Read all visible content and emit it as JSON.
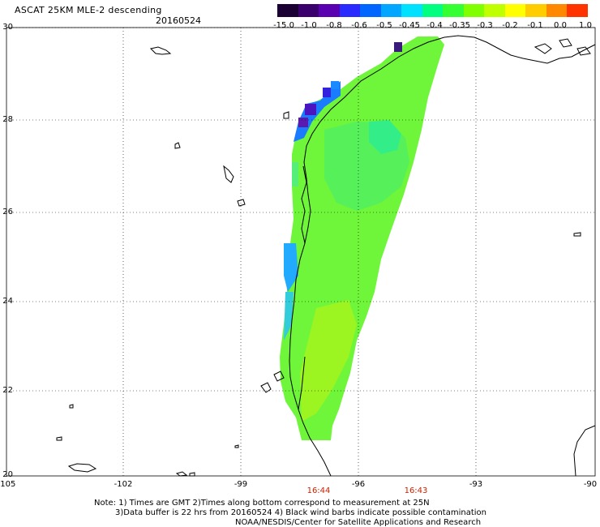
{
  "header": {
    "title": "ASCAT 25KM MLE-2 descending",
    "date": "20160524"
  },
  "colorbar": {
    "colors": [
      "#1a0033",
      "#3a006b",
      "#5a00b0",
      "#2a2aff",
      "#0066ff",
      "#00a6ff",
      "#00e0ff",
      "#00ff80",
      "#33ff33",
      "#80ff00",
      "#bfff00",
      "#ffff00",
      "#ffcc00",
      "#ff8800",
      "#ff3300"
    ],
    "labels": [
      "-15.0",
      "-1.0",
      "-0.8",
      "-0.6",
      "-0.5",
      "-0.45",
      "-0.4",
      "-0.35",
      "-0.3",
      "-0.2",
      "-0.1",
      "0.0",
      "1.0"
    ]
  },
  "axes": {
    "y_labels": [
      "30",
      "28",
      "26",
      "24",
      "22",
      "20"
    ],
    "x_labels": [
      "-105",
      "-102",
      "-99",
      "-96",
      "-93",
      "-90"
    ]
  },
  "times": [
    "16:44",
    "16:43"
  ],
  "notes": {
    "line1": "Note: 1) Times are GMT 2)Times along bottom correspond to measurement at 25N",
    "line2": "3)Data buffer is 22 hrs from 20160524 4) Black wind barbs indicate possible contamination",
    "line3": "NOAA/NESDIS/Center for Satellite Applications and Research"
  }
}
